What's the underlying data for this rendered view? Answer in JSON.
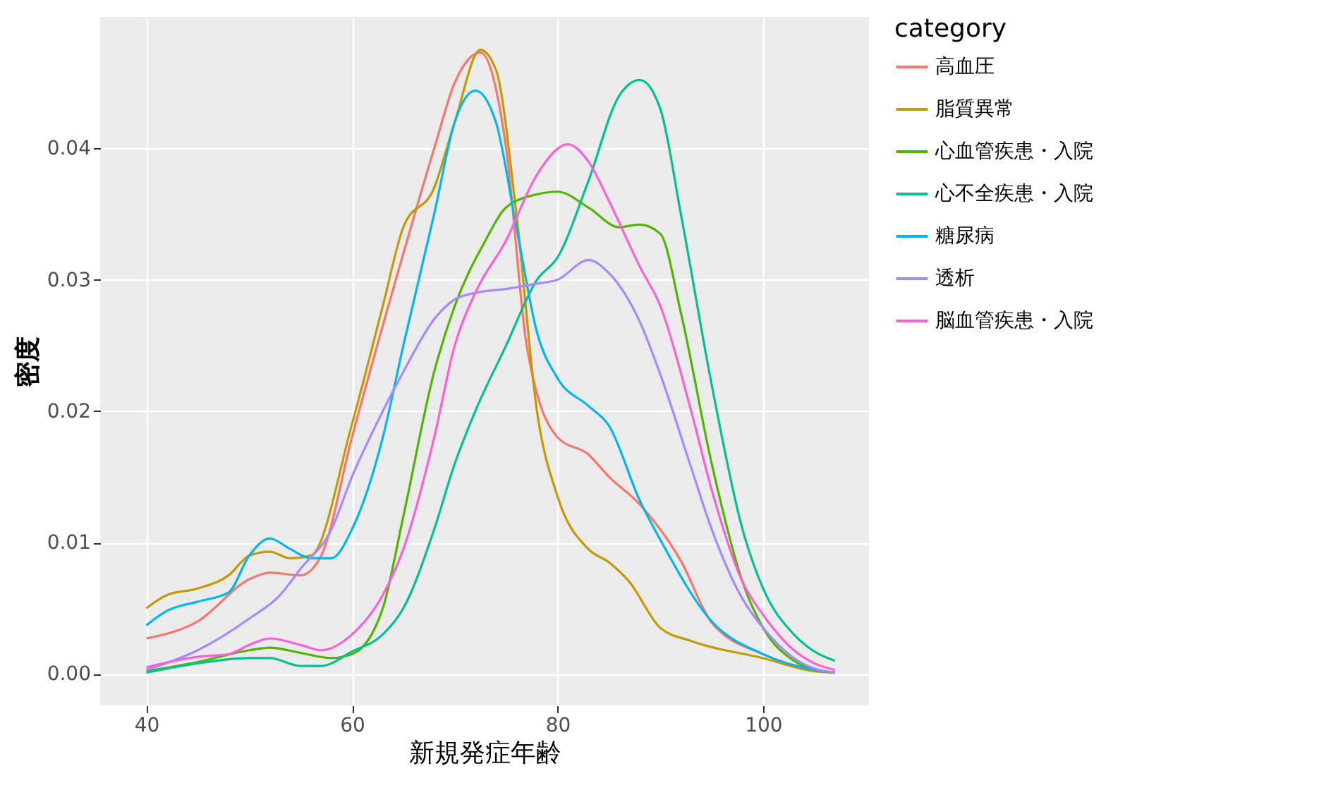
{
  "chart_data": {
    "type": "line",
    "xlabel": "新規発症年齢",
    "ylabel": "密度",
    "legend_title": "category",
    "legend": "right",
    "grid": true,
    "xlim": [
      35.5,
      110.3
    ],
    "ylim": [
      -0.0024,
      0.05
    ],
    "xticks": [
      40,
      60,
      80,
      100
    ],
    "yticks": [
      {
        "value": 0,
        "label": "0.00"
      },
      {
        "value": 0.01,
        "label": "0.01"
      },
      {
        "value": 0.02,
        "label": "0.02"
      },
      {
        "value": 0.03,
        "label": "0.03"
      },
      {
        "value": 0.04,
        "label": "0.04"
      }
    ],
    "series": [
      {
        "name": "高血圧",
        "color": "#f8766d",
        "x": [
          40,
          45,
          50,
          52,
          55,
          57,
          60,
          65,
          68,
          70,
          72.5,
          75,
          77,
          80,
          83,
          85,
          88,
          92,
          95,
          100,
          105,
          107
        ],
        "values": [
          0.0027,
          0.004,
          0.0072,
          0.0077,
          0.0075,
          0.009,
          0.018,
          0.032,
          0.04,
          0.045,
          0.0473,
          0.04,
          0.025,
          0.018,
          0.0167,
          0.015,
          0.0129,
          0.0086,
          0.0039,
          0.0015,
          0.0003,
          0.0001
        ]
      },
      {
        "name": "脂質異常",
        "color": "#c49a00",
        "x": [
          40,
          42,
          45,
          48,
          50,
          52,
          54,
          56,
          60,
          63,
          65,
          68,
          70,
          72.5,
          74,
          76,
          78,
          80,
          83,
          85,
          87,
          90,
          93,
          100,
          105,
          107
        ],
        "values": [
          0.005,
          0.006,
          0.0065,
          0.0075,
          0.009,
          0.0093,
          0.0088,
          0.009,
          0.019,
          0.028,
          0.034,
          0.037,
          0.042,
          0.0475,
          0.046,
          0.035,
          0.02,
          0.0135,
          0.0095,
          0.0085,
          0.007,
          0.0035,
          0.0025,
          0.0012,
          0.0002,
          0.0001
        ]
      },
      {
        "name": "心血管疾患・入院",
        "color": "#53b400",
        "x": [
          40,
          45,
          50,
          52,
          55,
          58,
          60,
          63,
          65,
          68,
          70,
          73,
          75,
          78,
          80,
          83,
          86,
          88,
          90,
          92,
          95,
          98,
          100,
          103,
          105,
          107
        ],
        "values": [
          0.0002,
          0.0009,
          0.0018,
          0.002,
          0.0016,
          0.0012,
          0.0015,
          0.005,
          0.012,
          0.023,
          0.028,
          0.033,
          0.0355,
          0.0365,
          0.0367,
          0.0355,
          0.034,
          0.0342,
          0.0335,
          0.0275,
          0.016,
          0.007,
          0.0035,
          0.001,
          0.0003,
          0.0001
        ]
      },
      {
        "name": "心不全疾患・入院",
        "color": "#00c094",
        "x": [
          40,
          45,
          50,
          52,
          55,
          57,
          60,
          63,
          65,
          68,
          70,
          72,
          75,
          78,
          80,
          83,
          86,
          88,
          90,
          92,
          95,
          98,
          100,
          103,
          105,
          107
        ],
        "values": [
          0.0001,
          0.0008,
          0.0012,
          0.0012,
          0.0006,
          0.0006,
          0.0017,
          0.003,
          0.005,
          0.011,
          0.016,
          0.02,
          0.025,
          0.03,
          0.0317,
          0.0375,
          0.044,
          0.0452,
          0.043,
          0.035,
          0.022,
          0.011,
          0.0065,
          0.003,
          0.0017,
          0.001
        ]
      },
      {
        "name": "糖尿病",
        "color": "#00b6eb",
        "x": [
          40,
          42,
          45,
          48,
          50,
          52,
          54,
          56,
          58,
          60,
          63,
          65,
          68,
          70,
          72,
          74,
          76,
          78,
          80,
          83,
          85,
          88,
          90,
          95,
          100,
          105,
          107
        ],
        "values": [
          0.0037,
          0.0048,
          0.0055,
          0.0062,
          0.009,
          0.0103,
          0.0095,
          0.0088,
          0.0088,
          0.011,
          0.018,
          0.025,
          0.035,
          0.042,
          0.0444,
          0.042,
          0.034,
          0.026,
          0.0225,
          0.0204,
          0.0189,
          0.0132,
          0.0102,
          0.004,
          0.0015,
          0.0003,
          0.0001
        ]
      },
      {
        "name": "透析",
        "color": "#a58aff",
        "x": [
          40,
          45,
          50,
          53,
          55,
          58,
          60,
          63,
          65,
          68,
          70,
          72,
          75,
          78,
          80,
          83,
          85,
          88,
          90,
          93,
          95,
          98,
          100,
          103,
          105,
          107
        ],
        "values": [
          0.0003,
          0.0018,
          0.0042,
          0.006,
          0.008,
          0.011,
          0.015,
          0.02,
          0.023,
          0.027,
          0.0285,
          0.029,
          0.0293,
          0.0297,
          0.03,
          0.0315,
          0.0305,
          0.0268,
          0.0228,
          0.0157,
          0.011,
          0.0057,
          0.0035,
          0.0012,
          0.0004,
          0.0001
        ]
      },
      {
        "name": "脳血管疾患・入院",
        "color": "#fb61d7",
        "x": [
          40,
          45,
          48,
          50,
          52,
          55,
          57,
          60,
          63,
          65,
          68,
          70,
          72,
          75,
          78,
          81,
          83,
          85,
          88,
          90,
          93,
          95,
          98,
          100,
          103,
          105,
          107
        ],
        "values": [
          0.0005,
          0.0013,
          0.0015,
          0.0022,
          0.0027,
          0.0022,
          0.0018,
          0.003,
          0.006,
          0.0095,
          0.018,
          0.025,
          0.029,
          0.033,
          0.038,
          0.0403,
          0.039,
          0.036,
          0.031,
          0.028,
          0.02,
          0.014,
          0.007,
          0.0045,
          0.0018,
          0.0008,
          0.0003
        ]
      }
    ]
  }
}
